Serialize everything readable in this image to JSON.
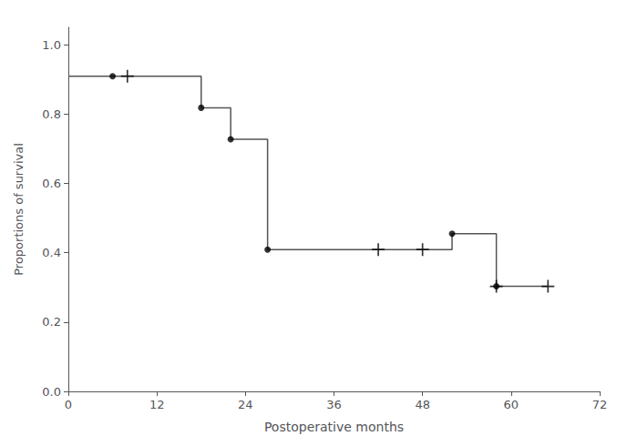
{
  "chart_data": {
    "type": "line",
    "xlabel": "Postoperative months",
    "ylabel": "Proportions of survival",
    "xlim": [
      0,
      72
    ],
    "ylim": [
      0.0,
      1.05
    ],
    "xticks": [
      0,
      12,
      24,
      36,
      48,
      60,
      72
    ],
    "yticks": [
      {
        "value": 0.0,
        "label": "0.0"
      },
      0.2,
      0.4,
      0.6,
      0.8,
      {
        "value": 1.0,
        "label": "1.0"
      }
    ],
    "grid": false,
    "series": [
      {
        "type": "line",
        "line_style": "solid",
        "color": "#555555",
        "x": [
          0,
          6,
          18,
          18,
          22,
          22,
          27,
          27,
          52,
          52,
          58,
          58,
          65
        ],
        "values": [
          0.909,
          0.909,
          0.909,
          0.818,
          0.818,
          0.727,
          0.727,
          0.409,
          0.409,
          0.455,
          0.455,
          0.303,
          0.303
        ]
      },
      {
        "type": "scatter",
        "marker": "circle",
        "color": "#000000",
        "x": [
          6,
          18,
          22,
          27,
          52,
          58
        ],
        "values": [
          0.909,
          0.818,
          0.727,
          0.409,
          0.455,
          0.303
        ]
      },
      {
        "type": "scatter",
        "marker": "plus",
        "color": "#000000",
        "x": [
          8,
          42,
          48,
          58,
          65
        ],
        "values": [
          0.909,
          0.409,
          0.409,
          0.303,
          0.303
        ]
      }
    ]
  }
}
